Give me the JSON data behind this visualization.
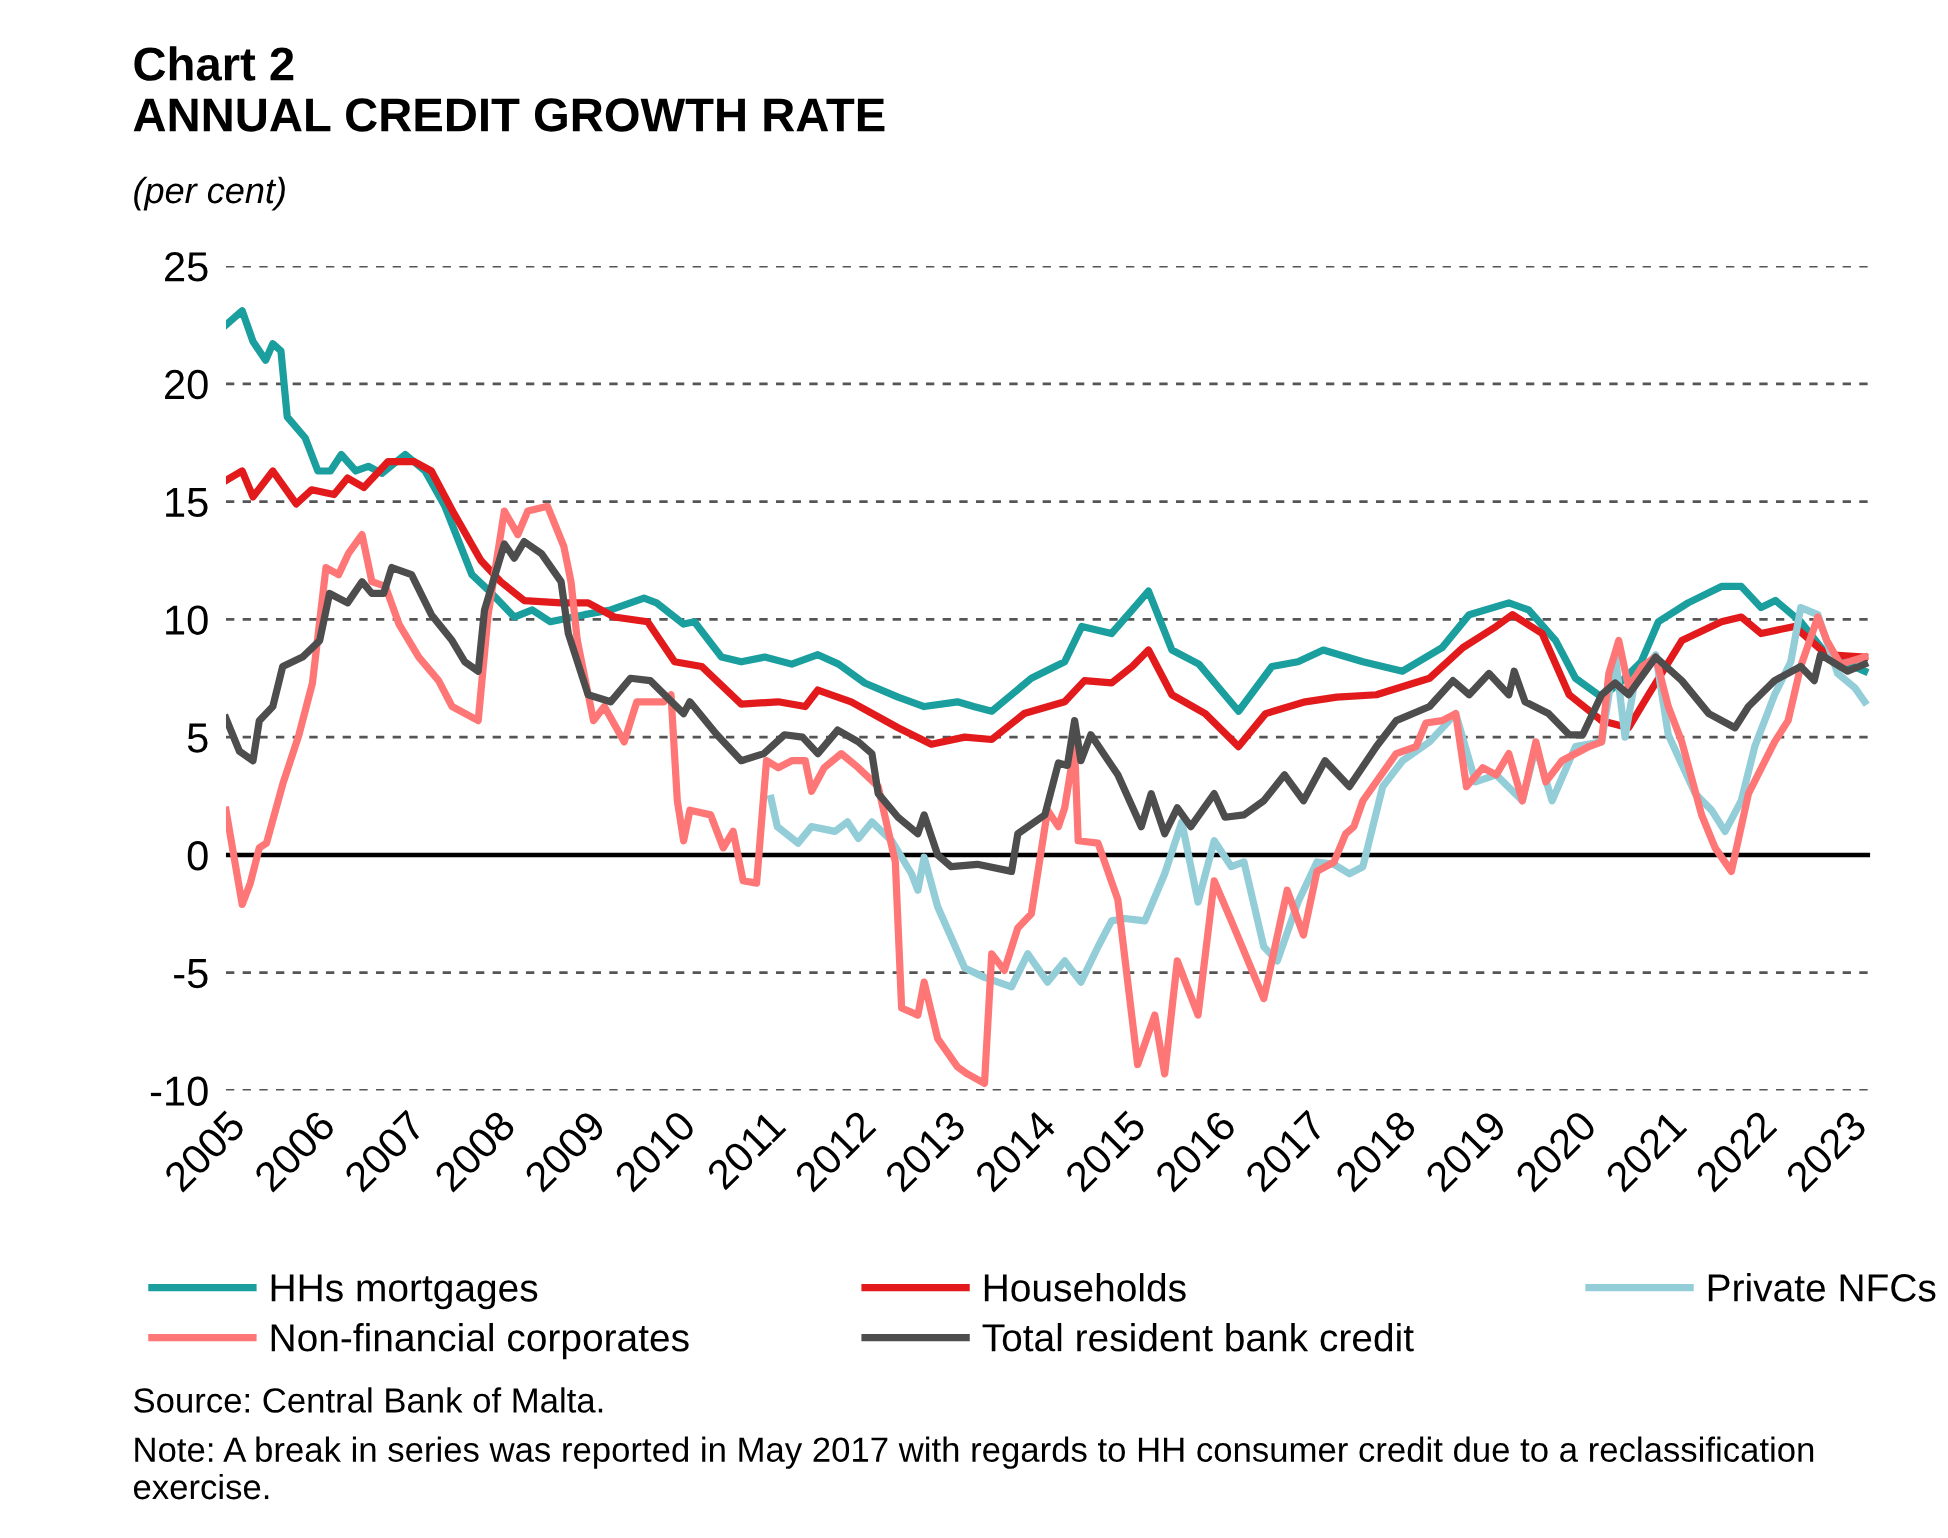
{
  "chart_data": {
    "type": "line",
    "title": "Chart 2\nANNUAL CREDIT GROWTH RATE",
    "ylabel": "(per cent)",
    "xlim": [
      2005,
      2023.25
    ],
    "xticks": [
      {
        "value": 2005,
        "label": "2005"
      },
      {
        "value": 2006,
        "label": "2006"
      },
      {
        "value": 2007,
        "label": "2007"
      },
      {
        "value": 2008,
        "label": "2008"
      },
      {
        "value": 2009,
        "label": "2009"
      },
      {
        "value": 2010,
        "label": "2010"
      },
      {
        "value": 2011,
        "label": "2011"
      },
      {
        "value": 2012,
        "label": "2012"
      },
      {
        "value": 2013,
        "label": "2013"
      },
      {
        "value": 2014,
        "label": "2014"
      },
      {
        "value": 2015,
        "label": "2015"
      },
      {
        "value": 2016,
        "label": "2016"
      },
      {
        "value": 2017,
        "label": "2017"
      },
      {
        "value": 2018,
        "label": "2018"
      },
      {
        "value": 2019,
        "label": "2019"
      },
      {
        "value": 2020,
        "label": "2020"
      },
      {
        "value": 2021,
        "label": "2021"
      },
      {
        "value": 2022,
        "label": "2022"
      },
      {
        "value": 2023,
        "label": "2023"
      }
    ],
    "ylim": [
      -10,
      25
    ],
    "yticks": [
      -10,
      -5,
      0,
      5,
      10,
      15,
      20,
      25
    ],
    "grid": "y",
    "legend": "bottom",
    "line_style": "solid",
    "marker": "none",
    "ref_lines": [
      {
        "axis": "y",
        "value": 0,
        "label": null,
        "color": "#000000",
        "line_style": "solid"
      }
    ],
    "annotations": [
      "Source: Central Bank of Malta.",
      "Note: A break in series was reported in May 2017 with regards to HH consumer credit due to a reclassification exercise."
    ],
    "series": [
      {
        "name": "HHs mortgages",
        "color": "#1a9e9e",
        "x": [
          2005.0,
          2005.18,
          2005.3,
          2005.44,
          2005.52,
          2005.61,
          2005.68,
          2005.88,
          2006.02,
          2006.16,
          2006.28,
          2006.44,
          2006.58,
          2006.73,
          2006.99,
          2007.21,
          2007.43,
          2007.73,
          2007.95,
          2008.2,
          2008.4,
          2008.6,
          2008.98,
          2009.27,
          2009.64,
          2009.78,
          2010.08,
          2010.2,
          2010.3,
          2010.5,
          2010.72,
          2010.98,
          2011.28,
          2011.57,
          2011.8,
          2012.09,
          2012.46,
          2012.75,
          2013.12,
          2013.3,
          2013.5,
          2013.94,
          2014.31,
          2014.5,
          2014.83,
          2015.06,
          2015.24,
          2015.5,
          2015.8,
          2016.24,
          2016.61,
          2016.9,
          2017.18,
          2017.62,
          2018.06,
          2018.5,
          2018.8,
          2019.24,
          2019.46,
          2019.76,
          2019.98,
          2020.27,
          2020.5,
          2020.71,
          2020.9,
          2021.23,
          2021.6,
          2021.82,
          2022.04,
          2022.2,
          2022.48,
          2022.77,
          2023.19
        ],
        "values": [
          22.5,
          23.1,
          21.8,
          21.0,
          21.7,
          21.4,
          18.6,
          17.7,
          16.3,
          16.3,
          17.0,
          16.3,
          16.5,
          16.2,
          17.0,
          16.3,
          14.8,
          11.9,
          11.1,
          10.1,
          10.4,
          9.9,
          10.2,
          10.4,
          10.9,
          10.7,
          9.8,
          9.9,
          9.4,
          8.4,
          8.2,
          8.4,
          8.1,
          8.5,
          8.1,
          7.3,
          6.7,
          6.3,
          6.5,
          6.3,
          6.1,
          7.5,
          8.2,
          9.7,
          9.4,
          10.4,
          11.2,
          8.7,
          8.1,
          6.1,
          8.0,
          8.2,
          8.7,
          8.2,
          7.8,
          8.8,
          10.2,
          10.7,
          10.4,
          9.1,
          7.5,
          6.7,
          7.4,
          8.2,
          9.9,
          10.7,
          11.4,
          11.4,
          10.5,
          10.8,
          9.9,
          8.5,
          7.8
        ]
      },
      {
        "name": "Households",
        "color": "#e31a1c",
        "x": [
          2005.0,
          2005.18,
          2005.3,
          2005.52,
          2005.78,
          2005.95,
          2006.2,
          2006.35,
          2006.53,
          2006.8,
          2007.09,
          2007.28,
          2007.53,
          2007.83,
          2008.05,
          2008.31,
          2008.72,
          2009.02,
          2009.31,
          2009.68,
          2009.98,
          2010.28,
          2010.72,
          2011.13,
          2011.43,
          2011.57,
          2011.94,
          2012.46,
          2012.83,
          2013.2,
          2013.5,
          2013.86,
          2014.31,
          2014.53,
          2014.83,
          2015.06,
          2015.24,
          2015.5,
          2015.87,
          2016.24,
          2016.54,
          2016.98,
          2017.33,
          2017.77,
          2018.36,
          2018.73,
          2019.1,
          2019.28,
          2019.61,
          2019.91,
          2020.27,
          2020.57,
          2020.79,
          2021.16,
          2021.6,
          2021.82,
          2022.04,
          2022.41,
          2022.77,
          2023.19
        ],
        "values": [
          15.9,
          16.3,
          15.2,
          16.3,
          14.9,
          15.5,
          15.3,
          16.0,
          15.6,
          16.7,
          16.7,
          16.3,
          14.5,
          12.5,
          11.6,
          10.8,
          10.7,
          10.7,
          10.1,
          9.9,
          8.2,
          8.0,
          6.4,
          6.5,
          6.3,
          7.0,
          6.5,
          5.4,
          4.7,
          5.0,
          4.9,
          6.0,
          6.5,
          7.4,
          7.3,
          8.0,
          8.7,
          6.8,
          6.0,
          4.6,
          6.0,
          6.5,
          6.7,
          6.8,
          7.5,
          8.8,
          9.7,
          10.2,
          9.4,
          6.8,
          5.7,
          5.4,
          6.8,
          9.1,
          9.9,
          10.1,
          9.4,
          9.7,
          8.5,
          8.4
        ]
      },
      {
        "name": "Private NFCs",
        "color": "#92cdd8",
        "x": [
          2011.05,
          2011.12,
          2011.35,
          2011.5,
          2011.76,
          2011.9,
          2012.02,
          2012.17,
          2012.39,
          2012.61,
          2012.68,
          2012.75,
          2012.9,
          2013.2,
          2013.42,
          2013.72,
          2013.9,
          2014.12,
          2014.31,
          2014.49,
          2014.68,
          2014.83,
          2014.98,
          2015.2,
          2015.42,
          2015.61,
          2015.79,
          2015.97,
          2016.16,
          2016.3,
          2016.52,
          2016.67,
          2016.9,
          2017.11,
          2017.3,
          2017.47,
          2017.62,
          2017.84,
          2018.06,
          2018.36,
          2018.65,
          2018.87,
          2019.1,
          2019.39,
          2019.54,
          2019.72,
          2019.98,
          2020.27,
          2020.42,
          2020.53,
          2020.64,
          2020.87,
          2021.01,
          2021.31,
          2021.49,
          2021.64,
          2021.82,
          2021.97,
          2022.19,
          2022.37,
          2022.48,
          2022.67,
          2022.89,
          2023.08,
          2023.19
        ],
        "values": [
          2.4,
          1.2,
          0.5,
          1.2,
          1.0,
          1.4,
          0.7,
          1.4,
          0.6,
          -0.8,
          -1.5,
          -0.1,
          -2.2,
          -4.8,
          -5.2,
          -5.6,
          -4.2,
          -5.4,
          -4.5,
          -5.4,
          -3.9,
          -2.8,
          -2.7,
          -2.8,
          -0.8,
          1.4,
          -2.0,
          0.6,
          -0.5,
          -0.3,
          -3.9,
          -4.5,
          -2.0,
          -0.3,
          -0.4,
          -0.8,
          -0.5,
          2.9,
          4.0,
          4.8,
          6.0,
          3.1,
          3.4,
          2.3,
          4.6,
          2.3,
          4.6,
          4.8,
          8.5,
          5.0,
          7.4,
          8.5,
          5.1,
          2.6,
          1.9,
          1.0,
          2.3,
          4.6,
          6.8,
          8.2,
          10.5,
          10.2,
          7.7,
          7.1,
          6.5
        ]
      },
      {
        "name": "Non-financial corporates",
        "color": "#ff7676",
        "x": [
          2005.0,
          2005.18,
          2005.27,
          2005.37,
          2005.45,
          2005.63,
          2005.81,
          2005.96,
          2006.11,
          2006.25,
          2006.36,
          2006.51,
          2006.62,
          2006.77,
          2006.92,
          2007.14,
          2007.36,
          2007.51,
          2007.8,
          2007.91,
          2008.09,
          2008.24,
          2008.35,
          2008.57,
          2008.75,
          2008.83,
          2008.9,
          2009.08,
          2009.2,
          2009.42,
          2009.56,
          2009.86,
          2009.94,
          2010.01,
          2010.08,
          2010.15,
          2010.38,
          2010.52,
          2010.63,
          2010.74,
          2010.89,
          2011.0,
          2011.13,
          2011.28,
          2011.43,
          2011.5,
          2011.64,
          2011.83,
          2012.02,
          2012.24,
          2012.43,
          2012.5,
          2012.68,
          2012.75,
          2012.9,
          2013.12,
          2013.23,
          2013.42,
          2013.5,
          2013.64,
          2013.79,
          2013.94,
          2014.12,
          2014.24,
          2014.31,
          2014.42,
          2014.46,
          2014.68,
          2014.9,
          2015.12,
          2015.31,
          2015.42,
          2015.56,
          2015.79,
          2015.97,
          2016.16,
          2016.52,
          2016.78,
          2016.96,
          2017.11,
          2017.3,
          2017.43,
          2017.52,
          2017.62,
          2017.99,
          2018.21,
          2018.32,
          2018.5,
          2018.65,
          2018.77,
          2018.95,
          2019.1,
          2019.24,
          2019.39,
          2019.54,
          2019.65,
          2019.83,
          2020.13,
          2020.27,
          2020.35,
          2020.46,
          2020.57,
          2020.72,
          2020.87,
          2021.01,
          2021.16,
          2021.38,
          2021.53,
          2021.71,
          2021.9,
          2022.19,
          2022.34,
          2022.48,
          2022.67,
          2022.77,
          2022.92,
          2023.19
        ],
        "values": [
          1.9,
          -2.1,
          -1.2,
          0.3,
          0.5,
          3.0,
          5.1,
          7.3,
          12.2,
          11.9,
          12.8,
          13.6,
          11.6,
          11.4,
          9.8,
          8.4,
          7.4,
          6.3,
          5.7,
          10.2,
          14.6,
          13.6,
          14.6,
          14.8,
          13.1,
          11.6,
          9.1,
          5.7,
          6.3,
          4.8,
          6.5,
          6.5,
          6.8,
          2.3,
          0.6,
          1.9,
          1.7,
          0.3,
          1.0,
          -1.1,
          -1.2,
          4.0,
          3.7,
          4.0,
          4.0,
          2.7,
          3.7,
          4.3,
          3.7,
          2.9,
          -0.3,
          -6.5,
          -6.8,
          -5.4,
          -7.8,
          -9.0,
          -9.3,
          -9.7,
          -4.2,
          -4.9,
          -3.1,
          -2.5,
          1.9,
          1.2,
          2.0,
          4.6,
          0.6,
          0.5,
          -1.9,
          -8.9,
          -6.8,
          -9.3,
          -4.5,
          -6.8,
          -1.1,
          -2.8,
          -6.1,
          -1.5,
          -3.4,
          -0.7,
          -0.3,
          0.9,
          1.2,
          2.3,
          4.3,
          4.6,
          5.6,
          5.7,
          6.0,
          2.9,
          3.7,
          3.4,
          4.3,
          2.3,
          4.8,
          3.1,
          4.0,
          4.6,
          4.8,
          7.7,
          9.1,
          7.1,
          8.0,
          8.4,
          6.3,
          4.8,
          1.7,
          0.3,
          -0.7,
          2.6,
          4.8,
          5.7,
          8.0,
          10.1,
          9.1,
          8.1,
          8.4
        ]
      },
      {
        "name": "Total resident bank credit",
        "color": "#4d4d4d",
        "x": [
          2005.0,
          2005.15,
          2005.3,
          2005.37,
          2005.52,
          2005.63,
          2005.85,
          2006.04,
          2006.15,
          2006.35,
          2006.51,
          2006.62,
          2006.75,
          2006.84,
          2007.06,
          2007.28,
          2007.51,
          2007.65,
          2007.8,
          2007.87,
          2008.09,
          2008.2,
          2008.31,
          2008.5,
          2008.72,
          2008.8,
          2009.02,
          2009.27,
          2009.49,
          2009.71,
          2010.08,
          2010.15,
          2010.45,
          2010.72,
          2010.97,
          2011.2,
          2011.4,
          2011.57,
          2011.79,
          2012.02,
          2012.17,
          2012.24,
          2012.46,
          2012.68,
          2012.75,
          2012.9,
          2013.05,
          2013.34,
          2013.72,
          2013.79,
          2014.09,
          2014.24,
          2014.34,
          2014.42,
          2014.49,
          2014.6,
          2014.9,
          2015.16,
          2015.27,
          2015.42,
          2015.56,
          2015.71,
          2015.97,
          2016.09,
          2016.3,
          2016.52,
          2016.75,
          2016.96,
          2017.2,
          2017.47,
          2017.77,
          2017.99,
          2018.36,
          2018.62,
          2018.8,
          2019.02,
          2019.24,
          2019.3,
          2019.42,
          2019.68,
          2019.91,
          2020.06,
          2020.27,
          2020.42,
          2020.57,
          2020.87,
          2021.16,
          2021.46,
          2021.75,
          2021.9,
          2022.19,
          2022.48,
          2022.63,
          2022.7,
          2023.0,
          2023.19
        ],
        "values": [
          5.8,
          4.4,
          4.0,
          5.7,
          6.3,
          8.0,
          8.4,
          9.1,
          11.1,
          10.7,
          11.6,
          11.1,
          11.1,
          12.2,
          11.9,
          10.2,
          9.1,
          8.2,
          7.8,
          10.4,
          13.2,
          12.6,
          13.3,
          12.8,
          11.6,
          9.4,
          6.8,
          6.5,
          7.5,
          7.4,
          6.0,
          6.5,
          5.1,
          4.0,
          4.3,
          5.1,
          5.0,
          4.3,
          5.3,
          4.8,
          4.3,
          2.6,
          1.6,
          0.9,
          1.7,
          0.0,
          -0.5,
          -0.4,
          -0.7,
          0.9,
          1.7,
          3.9,
          3.8,
          5.7,
          4.0,
          5.1,
          3.4,
          1.2,
          2.6,
          0.9,
          2.0,
          1.2,
          2.6,
          1.6,
          1.7,
          2.3,
          3.4,
          2.3,
          4.0,
          2.9,
          4.6,
          5.7,
          6.3,
          7.4,
          6.8,
          7.7,
          6.8,
          7.8,
          6.5,
          6.0,
          5.1,
          5.1,
          6.8,
          7.3,
          6.8,
          8.4,
          7.4,
          6.0,
          5.4,
          6.3,
          7.4,
          8.0,
          7.4,
          8.5,
          7.8,
          8.1
        ]
      }
    ]
  }
}
